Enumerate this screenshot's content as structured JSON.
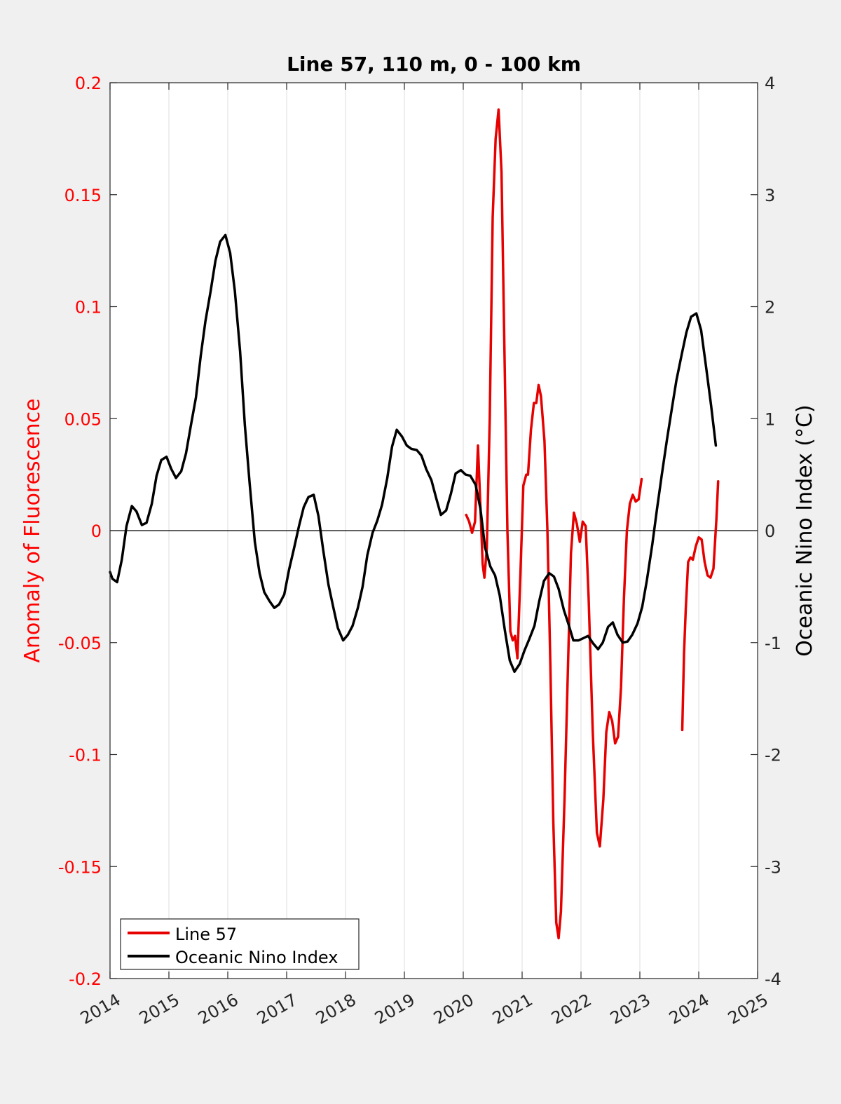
{
  "chart_data": {
    "type": "line",
    "title": "Line 57, 110 m, 0 - 100 km",
    "xlabel": "",
    "ylabel_left": "Anomaly of Fluorescence",
    "ylabel_right": "Oceanic Nino Index (°C)",
    "xlim": [
      2014,
      2025
    ],
    "ylim_left": [
      -0.2,
      0.2
    ],
    "ylim_right": [
      -4,
      4
    ],
    "x_ticks": [
      2014,
      2015,
      2016,
      2017,
      2018,
      2019,
      2020,
      2021,
      2022,
      2023,
      2024,
      2025
    ],
    "y_left_ticks": [
      "0.2",
      "0.15",
      "0.1",
      "0.05",
      "0",
      "-0.05",
      "-0.1",
      "-0.15",
      "-0.2"
    ],
    "y_left_tick_values": [
      0.2,
      0.15,
      0.1,
      0.05,
      0,
      -0.05,
      -0.1,
      -0.15,
      -0.2
    ],
    "y_right_ticks": [
      "4",
      "3",
      "2",
      "1",
      "0",
      "-1",
      "-2",
      "-3",
      "-4"
    ],
    "y_right_tick_values": [
      4,
      3,
      2,
      1,
      0,
      -1,
      -2,
      -3,
      -4
    ],
    "grid": "vertical",
    "legend_position": "bottom-left",
    "colors": {
      "left_axis": "#ff0000",
      "fluorescence": "#e60000",
      "oni": "#000000",
      "background": "#f0f0f0",
      "plot_bg": "#ffffff",
      "grid": "#dcdcdc"
    },
    "series": [
      {
        "name": "Line 57",
        "axis": "left",
        "color": "#e60000",
        "segments": [
          [
            [
              2020.05,
              0.007
            ],
            [
              2020.1,
              0.004
            ],
            [
              2020.15,
              -0.001
            ],
            [
              2020.2,
              0.004
            ],
            [
              2020.25,
              0.038
            ],
            [
              2020.3,
              0.005
            ],
            [
              2020.33,
              -0.015
            ],
            [
              2020.36,
              -0.021
            ],
            [
              2020.4,
              -0.008
            ],
            [
              2020.45,
              0.05
            ],
            [
              2020.5,
              0.14
            ],
            [
              2020.55,
              0.175
            ],
            [
              2020.6,
              0.188
            ],
            [
              2020.65,
              0.16
            ],
            [
              2020.7,
              0.08
            ],
            [
              2020.75,
              0.0
            ],
            [
              2020.8,
              -0.045
            ],
            [
              2020.84,
              -0.049
            ],
            [
              2020.88,
              -0.047
            ],
            [
              2020.92,
              -0.057
            ],
            [
              2020.97,
              -0.02
            ],
            [
              2021.02,
              0.02
            ],
            [
              2021.07,
              0.025
            ],
            [
              2021.1,
              0.025
            ],
            [
              2021.15,
              0.045
            ],
            [
              2021.2,
              0.057
            ],
            [
              2021.24,
              0.057
            ],
            [
              2021.28,
              0.065
            ],
            [
              2021.32,
              0.06
            ],
            [
              2021.38,
              0.04
            ],
            [
              2021.43,
              0.0
            ],
            [
              2021.48,
              -0.06
            ],
            [
              2021.53,
              -0.13
            ],
            [
              2021.58,
              -0.175
            ],
            [
              2021.62,
              -0.182
            ],
            [
              2021.66,
              -0.17
            ],
            [
              2021.72,
              -0.12
            ],
            [
              2021.78,
              -0.06
            ],
            [
              2021.83,
              -0.01
            ],
            [
              2021.88,
              0.008
            ],
            [
              2021.93,
              0.003
            ],
            [
              2021.98,
              -0.005
            ],
            [
              2022.03,
              0.004
            ],
            [
              2022.08,
              0.002
            ],
            [
              2022.13,
              -0.03
            ],
            [
              2022.2,
              -0.09
            ],
            [
              2022.27,
              -0.135
            ],
            [
              2022.32,
              -0.141
            ],
            [
              2022.38,
              -0.12
            ],
            [
              2022.43,
              -0.09
            ],
            [
              2022.48,
              -0.081
            ],
            [
              2022.53,
              -0.085
            ],
            [
              2022.58,
              -0.095
            ],
            [
              2022.63,
              -0.092
            ],
            [
              2022.68,
              -0.07
            ],
            [
              2022.73,
              -0.03
            ],
            [
              2022.78,
              0.0
            ],
            [
              2022.83,
              0.012
            ],
            [
              2022.88,
              0.016
            ],
            [
              2022.93,
              0.013
            ],
            [
              2022.98,
              0.014
            ],
            [
              2023.03,
              0.023
            ]
          ],
          [
            [
              2023.72,
              -0.089
            ],
            [
              2023.75,
              -0.055
            ],
            [
              2023.78,
              -0.035
            ],
            [
              2023.82,
              -0.014
            ],
            [
              2023.86,
              -0.012
            ],
            [
              2023.9,
              -0.013
            ],
            [
              2023.95,
              -0.007
            ],
            [
              2024.0,
              -0.003
            ],
            [
              2024.05,
              -0.004
            ],
            [
              2024.1,
              -0.014
            ],
            [
              2024.15,
              -0.02
            ],
            [
              2024.2,
              -0.021
            ],
            [
              2024.25,
              -0.017
            ],
            [
              2024.3,
              0.005
            ],
            [
              2024.33,
              0.022
            ]
          ]
        ]
      },
      {
        "name": "Oceanic Nino Index",
        "axis": "right",
        "color": "#000000",
        "segments": [
          [
            [
              2014.0,
              -0.37
            ],
            [
              2014.04,
              -0.43
            ],
            [
              2014.12,
              -0.46
            ],
            [
              2014.2,
              -0.26
            ],
            [
              2014.28,
              0.04
            ],
            [
              2014.37,
              0.22
            ],
            [
              2014.45,
              0.17
            ],
            [
              2014.54,
              0.05
            ],
            [
              2014.62,
              0.07
            ],
            [
              2014.71,
              0.24
            ],
            [
              2014.79,
              0.49
            ],
            [
              2014.87,
              0.63
            ],
            [
              2014.96,
              0.66
            ],
            [
              2015.04,
              0.55
            ],
            [
              2015.12,
              0.47
            ],
            [
              2015.21,
              0.53
            ],
            [
              2015.29,
              0.69
            ],
            [
              2015.37,
              0.93
            ],
            [
              2015.46,
              1.19
            ],
            [
              2015.54,
              1.56
            ],
            [
              2015.62,
              1.87
            ],
            [
              2015.71,
              2.14
            ],
            [
              2015.79,
              2.41
            ],
            [
              2015.87,
              2.58
            ],
            [
              2015.96,
              2.64
            ],
            [
              2016.04,
              2.48
            ],
            [
              2016.12,
              2.14
            ],
            [
              2016.21,
              1.6
            ],
            [
              2016.29,
              0.94
            ],
            [
              2016.37,
              0.43
            ],
            [
              2016.46,
              -0.1
            ],
            [
              2016.54,
              -0.38
            ],
            [
              2016.62,
              -0.55
            ],
            [
              2016.71,
              -0.63
            ],
            [
              2016.79,
              -0.69
            ],
            [
              2016.87,
              -0.66
            ],
            [
              2016.96,
              -0.57
            ],
            [
              2017.04,
              -0.35
            ],
            [
              2017.12,
              -0.17
            ],
            [
              2017.21,
              0.04
            ],
            [
              2017.29,
              0.21
            ],
            [
              2017.37,
              0.3
            ],
            [
              2017.46,
              0.32
            ],
            [
              2017.54,
              0.13
            ],
            [
              2017.62,
              -0.17
            ],
            [
              2017.71,
              -0.48
            ],
            [
              2017.79,
              -0.68
            ],
            [
              2017.87,
              -0.87
            ],
            [
              2017.96,
              -0.98
            ],
            [
              2018.04,
              -0.93
            ],
            [
              2018.12,
              -0.85
            ],
            [
              2018.21,
              -0.69
            ],
            [
              2018.29,
              -0.5
            ],
            [
              2018.37,
              -0.22
            ],
            [
              2018.46,
              -0.02
            ],
            [
              2018.54,
              0.09
            ],
            [
              2018.62,
              0.23
            ],
            [
              2018.71,
              0.47
            ],
            [
              2018.79,
              0.75
            ],
            [
              2018.87,
              0.9
            ],
            [
              2018.96,
              0.84
            ],
            [
              2019.04,
              0.76
            ],
            [
              2019.12,
              0.73
            ],
            [
              2019.21,
              0.72
            ],
            [
              2019.29,
              0.67
            ],
            [
              2019.37,
              0.55
            ],
            [
              2019.46,
              0.45
            ],
            [
              2019.54,
              0.29
            ],
            [
              2019.62,
              0.14
            ],
            [
              2019.71,
              0.18
            ],
            [
              2019.79,
              0.33
            ],
            [
              2019.87,
              0.51
            ],
            [
              2019.96,
              0.54
            ],
            [
              2020.04,
              0.5
            ],
            [
              2020.12,
              0.49
            ],
            [
              2020.21,
              0.41
            ],
            [
              2020.29,
              0.2
            ],
            [
              2020.37,
              -0.15
            ],
            [
              2020.46,
              -0.32
            ],
            [
              2020.54,
              -0.4
            ],
            [
              2020.62,
              -0.58
            ],
            [
              2020.71,
              -0.9
            ],
            [
              2020.79,
              -1.16
            ],
            [
              2020.87,
              -1.26
            ],
            [
              2020.96,
              -1.19
            ],
            [
              2021.04,
              -1.07
            ],
            [
              2021.12,
              -0.97
            ],
            [
              2021.21,
              -0.85
            ],
            [
              2021.29,
              -0.63
            ],
            [
              2021.37,
              -0.45
            ],
            [
              2021.46,
              -0.38
            ],
            [
              2021.54,
              -0.41
            ],
            [
              2021.62,
              -0.52
            ],
            [
              2021.71,
              -0.71
            ],
            [
              2021.79,
              -0.84
            ],
            [
              2021.87,
              -0.98
            ],
            [
              2021.96,
              -0.98
            ],
            [
              2022.04,
              -0.96
            ],
            [
              2022.12,
              -0.94
            ],
            [
              2022.21,
              -1.01
            ],
            [
              2022.29,
              -1.06
            ],
            [
              2022.37,
              -1.0
            ],
            [
              2022.46,
              -0.86
            ],
            [
              2022.54,
              -0.82
            ],
            [
              2022.62,
              -0.93
            ],
            [
              2022.71,
              -1.0
            ],
            [
              2022.79,
              -0.99
            ],
            [
              2022.87,
              -0.93
            ],
            [
              2022.96,
              -0.83
            ],
            [
              2023.04,
              -0.68
            ],
            [
              2023.12,
              -0.44
            ],
            [
              2023.21,
              -0.13
            ],
            [
              2023.29,
              0.19
            ],
            [
              2023.37,
              0.49
            ],
            [
              2023.46,
              0.81
            ],
            [
              2023.54,
              1.08
            ],
            [
              2023.62,
              1.34
            ],
            [
              2023.71,
              1.57
            ],
            [
              2023.79,
              1.77
            ],
            [
              2023.87,
              1.91
            ],
            [
              2023.96,
              1.94
            ],
            [
              2024.04,
              1.79
            ],
            [
              2024.12,
              1.48
            ],
            [
              2024.21,
              1.12
            ],
            [
              2024.29,
              0.76
            ]
          ]
        ]
      }
    ]
  }
}
